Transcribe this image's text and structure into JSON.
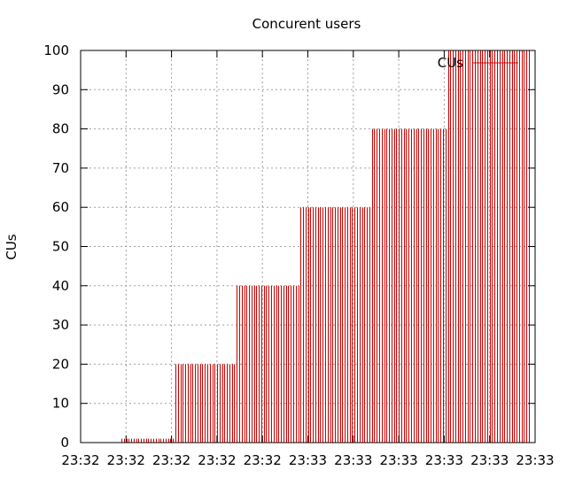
{
  "chart_data": {
    "type": "bar",
    "title": "Concurent users",
    "xlabel": "",
    "ylabel": "CUs",
    "ylim": [
      0,
      100
    ],
    "yticks": [
      0,
      10,
      20,
      30,
      40,
      50,
      60,
      70,
      80,
      90,
      100
    ],
    "xtick_labels": [
      "23:32",
      "23:32",
      "23:32",
      "23:32",
      "23:32",
      "23:33",
      "23:33",
      "23:33",
      "23:33",
      "23:33",
      "23:33"
    ],
    "grid": true,
    "legend_position": "top-right",
    "series": [
      {
        "name": "CUs",
        "color": "#cc0000",
        "style": "impulses",
        "values": [
          1,
          1,
          1,
          1,
          1,
          1,
          1,
          1,
          1,
          1,
          1,
          1,
          1,
          1,
          1,
          1,
          1,
          1,
          1,
          1,
          1,
          1,
          20,
          20,
          20,
          20,
          20,
          20,
          20,
          20,
          20,
          20,
          20,
          20,
          20,
          20,
          20,
          20,
          20,
          20,
          20,
          20,
          20,
          20,
          20,
          20,
          20,
          40,
          40,
          40,
          40,
          40,
          40,
          40,
          40,
          40,
          40,
          40,
          40,
          40,
          40,
          40,
          40,
          40,
          40,
          40,
          40,
          40,
          40,
          40,
          40,
          40,
          40,
          60,
          60,
          60,
          60,
          60,
          60,
          60,
          60,
          60,
          60,
          60,
          60,
          60,
          60,
          60,
          60,
          60,
          60,
          60,
          60,
          60,
          60,
          60,
          60,
          60,
          60,
          60,
          60,
          60,
          80,
          80,
          80,
          80,
          80,
          80,
          80,
          80,
          80,
          80,
          80,
          80,
          80,
          80,
          80,
          80,
          80,
          80,
          80,
          80,
          80,
          80,
          80,
          80,
          80,
          80,
          80,
          80,
          80,
          80,
          80,
          100,
          100,
          100,
          100,
          100,
          100,
          100,
          100,
          100,
          100,
          100,
          100,
          100,
          100,
          100,
          100,
          100,
          100,
          100,
          100,
          100,
          100,
          100,
          100,
          100,
          100,
          100,
          100,
          100,
          100,
          100,
          100,
          100,
          100
        ]
      }
    ]
  }
}
